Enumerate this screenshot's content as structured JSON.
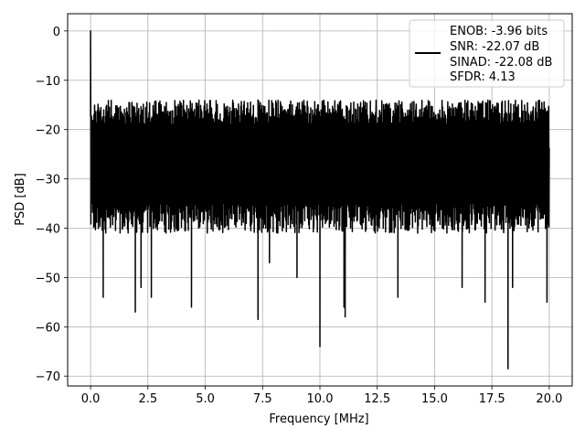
{
  "chart_data": {
    "type": "line",
    "xlabel": "Frequency [MHz]",
    "ylabel": "PSD [dB]",
    "xlim": [
      -1.0,
      21.0
    ],
    "ylim": [
      -72.0,
      3.5
    ],
    "xticks": [
      0.0,
      2.5,
      5.0,
      7.5,
      10.0,
      12.5,
      15.0,
      17.5,
      20.0
    ],
    "xtick_labels": [
      "0.0",
      "2.5",
      "5.0",
      "7.5",
      "10.0",
      "12.5",
      "15.0",
      "17.5",
      "20.0"
    ],
    "yticks": [
      0,
      -10,
      -20,
      -30,
      -40,
      -50,
      -60,
      -70
    ],
    "ytick_labels": [
      "0",
      "−10",
      "−20",
      "−30",
      "−40",
      "−50",
      "−60",
      "−70"
    ],
    "grid": true,
    "legend_position": "top-right",
    "series": [
      {
        "name": "ENOB: -3.96 bits\nSNR: -22.07 dB\nSINAD: -22.08 dB\nSFDR: 4.13",
        "legend_lines": [
          "ENOB: -3.96 bits",
          "SNR: -22.07 dB",
          "SINAD: -22.08 dB",
          "SFDR: 4.13"
        ],
        "color": "#000000",
        "x_range": [
          0.0,
          20.0
        ],
        "typical_upper_db": -14,
        "typical_lower_db": -38,
        "noise_floor_mean_db": -25,
        "peak": {
          "x": 0.0,
          "y": 0.0
        },
        "deep_minima": [
          {
            "x": 0.55,
            "y": -54
          },
          {
            "x": 1.95,
            "y": -57
          },
          {
            "x": 2.2,
            "y": -52
          },
          {
            "x": 2.65,
            "y": -54
          },
          {
            "x": 4.4,
            "y": -56
          },
          {
            "x": 7.3,
            "y": -58.5
          },
          {
            "x": 7.8,
            "y": -47
          },
          {
            "x": 9.0,
            "y": -50
          },
          {
            "x": 10.0,
            "y": -64
          },
          {
            "x": 11.05,
            "y": -56
          },
          {
            "x": 11.1,
            "y": -58
          },
          {
            "x": 13.4,
            "y": -54
          },
          {
            "x": 16.2,
            "y": -52
          },
          {
            "x": 17.2,
            "y": -55
          },
          {
            "x": 18.2,
            "y": -68.5
          },
          {
            "x": 18.4,
            "y": -52
          },
          {
            "x": 19.9,
            "y": -55
          }
        ]
      }
    ]
  }
}
